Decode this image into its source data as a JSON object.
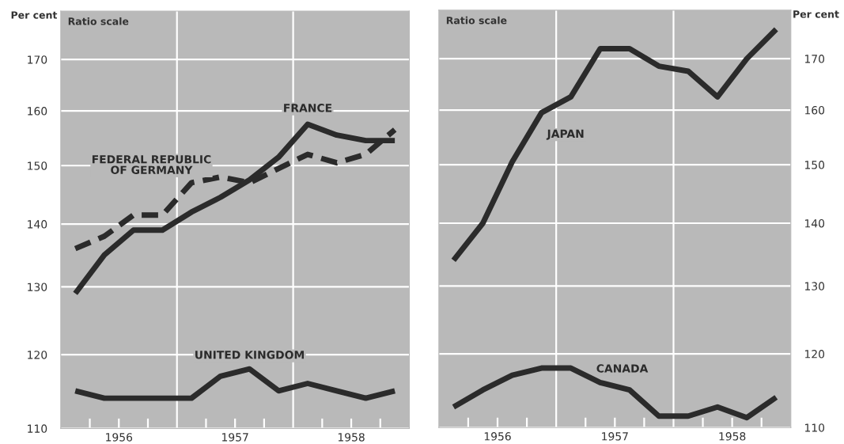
{
  "chart_data": [
    {
      "type": "line",
      "ylabel": "Per cent",
      "log": "y",
      "grid": "y",
      "xlim": [
        1956,
        1959
      ],
      "ylim": [
        110,
        180
      ],
      "yticks": [
        110,
        120,
        130,
        140,
        150,
        160,
        170
      ],
      "xticks": [
        {
          "value": 1956.25,
          "label": null
        },
        {
          "value": 1956.5,
          "label": "1956"
        },
        {
          "value": 1956.75,
          "label": null
        },
        {
          "value": 1957.25,
          "label": null
        },
        {
          "value": 1957.5,
          "label": "1957"
        },
        {
          "value": 1957.75,
          "label": null
        },
        {
          "value": 1958.25,
          "label": null
        },
        {
          "value": 1958.5,
          "label": "1958"
        },
        {
          "value": 1958.75,
          "label": null
        }
      ],
      "x": [
        1956.125,
        1956.375,
        1956.625,
        1956.875,
        1957.125,
        1957.375,
        1957.625,
        1957.875,
        1958.125,
        1958.375,
        1958.625,
        1958.875
      ],
      "ref_lines": [
        {
          "axis": "x",
          "value": 1957,
          "color": "#ffffff"
        },
        {
          "axis": "x",
          "value": 1958,
          "color": "#ffffff"
        }
      ],
      "series": [
        {
          "name": "FRANCE",
          "color": "#2b2b2b",
          "line_style": "solid",
          "values": [
            129,
            135,
            139,
            139,
            142,
            144.5,
            147.5,
            151.5,
            157.5,
            155.5,
            154.5,
            154.5
          ]
        },
        {
          "name": "FEDERAL REPUBLIC\nOF GERMANY",
          "color": "#2b2b2b",
          "line_style": "dashed",
          "values": [
            136,
            138,
            141.5,
            141.5,
            147,
            148,
            147,
            149.5,
            152,
            150.5,
            152,
            156.5
          ]
        },
        {
          "name": "UNITED KINGDOM",
          "color": "#2b2b2b",
          "line_style": "solid",
          "values": [
            115,
            114,
            114,
            114,
            114,
            117,
            118,
            115,
            116,
            115,
            114,
            115
          ]
        }
      ],
      "annotations": [
        "Ratio scale"
      ]
    },
    {
      "type": "line",
      "ylabel": "Per cent",
      "log": "y",
      "grid": "y",
      "xlim": [
        1956,
        1959
      ],
      "ylim": [
        110,
        180
      ],
      "yticks": [
        110,
        120,
        130,
        140,
        150,
        160,
        170
      ],
      "xticks": [
        {
          "value": 1956.25,
          "label": null
        },
        {
          "value": 1956.5,
          "label": "1956"
        },
        {
          "value": 1956.75,
          "label": null
        },
        {
          "value": 1957.25,
          "label": null
        },
        {
          "value": 1957.5,
          "label": "1957"
        },
        {
          "value": 1957.75,
          "label": null
        },
        {
          "value": 1958.25,
          "label": null
        },
        {
          "value": 1958.5,
          "label": "1958"
        },
        {
          "value": 1958.75,
          "label": null
        }
      ],
      "x": [
        1956.125,
        1956.375,
        1956.625,
        1956.875,
        1957.125,
        1957.375,
        1957.625,
        1957.875,
        1958.125,
        1958.375,
        1958.625,
        1958.875
      ],
      "ref_lines": [
        {
          "axis": "x",
          "value": 1957,
          "color": "#ffffff"
        },
        {
          "axis": "x",
          "value": 1958,
          "color": "#ffffff"
        }
      ],
      "series": [
        {
          "name": "JAPAN",
          "color": "#2b2b2b",
          "line_style": "solid",
          "values": [
            134,
            140,
            150.5,
            159.5,
            162.5,
            172,
            172,
            168.5,
            167.5,
            162.5,
            170,
            176
          ]
        },
        {
          "name": "CANADA",
          "color": "#2b2b2b",
          "line_style": "solid",
          "values": [
            112.7,
            115,
            117,
            118,
            118,
            116,
            115,
            111.5,
            111.5,
            112.7,
            111.3,
            114
          ]
        }
      ],
      "annotations": [
        "Ratio scale"
      ]
    }
  ]
}
